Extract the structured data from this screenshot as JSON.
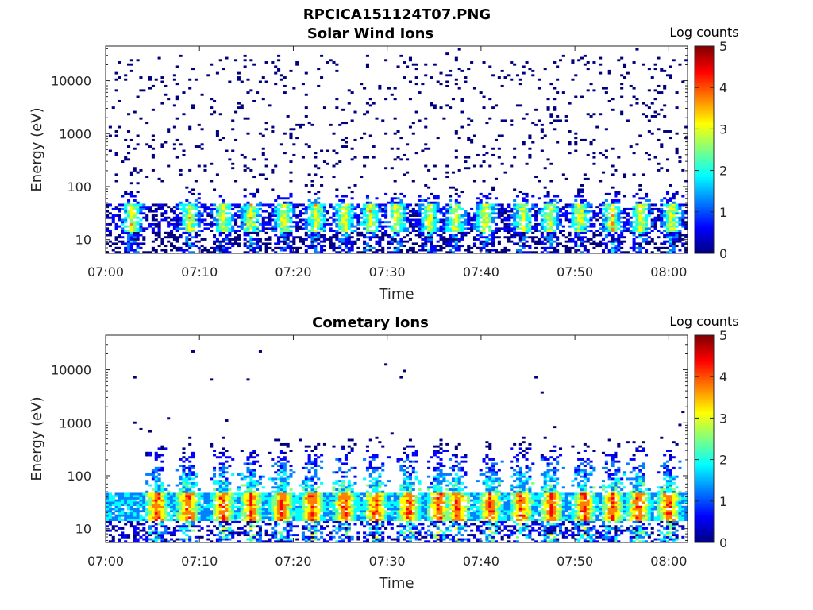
{
  "figure_title": "RPCICA151124T07.PNG",
  "colormap": [
    "#00007f",
    "#0000ff",
    "#007fff",
    "#00ffff",
    "#7fff7f",
    "#ffff00",
    "#ff7f00",
    "#ff0000",
    "#7f0000"
  ],
  "chart_data": [
    {
      "type": "heatmap",
      "title": "Solar Wind Ions",
      "xlabel": "Time",
      "ylabel": "Energy (eV)",
      "yscale": "log",
      "ylim": [
        5.5,
        45000
      ],
      "xlim": [
        "07:00",
        "08:02"
      ],
      "x_ticks": [
        "07:00",
        "07:10",
        "07:20",
        "07:30",
        "07:40",
        "07:50",
        "08:00"
      ],
      "y_ticks": [
        10,
        100,
        1000,
        10000
      ],
      "y_tick_labels": [
        "10",
        "100",
        "1000",
        "10000"
      ],
      "colorbar_label": "Log counts",
      "colorbar_range": [
        0,
        5
      ],
      "colorbar_ticks": [
        "0",
        "1",
        "2",
        "3",
        "4",
        "5"
      ],
      "grid": false,
      "burst_minutes": [
        2.8,
        9.0,
        12.5,
        15.5,
        19.0,
        22.4,
        25.5,
        28.2,
        31.0,
        34.5,
        37.3,
        40.5,
        44.5,
        47.3,
        50.5,
        54.0,
        57.0,
        60.3
      ],
      "pattern": "log counts 1-3.3 concentrated at 15-45 eV in periodic bursts; sparse low counts (0-0.5) scattered up to ~20000 eV"
    },
    {
      "type": "heatmap",
      "title": "Cometary Ions",
      "xlabel": "Time",
      "ylabel": "Energy (eV)",
      "yscale": "log",
      "ylim": [
        5.5,
        45000
      ],
      "xlim": [
        "07:00",
        "08:02"
      ],
      "x_ticks": [
        "07:00",
        "07:10",
        "07:20",
        "07:30",
        "07:40",
        "07:50",
        "08:00"
      ],
      "y_ticks": [
        10,
        100,
        1000,
        10000
      ],
      "y_tick_labels": [
        "10",
        "100",
        "1000",
        "10000"
      ],
      "colorbar_label": "Log counts",
      "colorbar_range": [
        0,
        5
      ],
      "colorbar_ticks": [
        "0",
        "1",
        "2",
        "3",
        "4",
        "5"
      ],
      "grid": false,
      "burst_minutes": [
        5.5,
        8.8,
        12.5,
        15.5,
        18.8,
        22.0,
        25.5,
        28.8,
        32.3,
        35.5,
        37.5,
        41.0,
        44.3,
        47.5,
        51.0,
        54.0,
        56.8,
        60.0
      ],
      "pattern": "log counts 2-4.2 concentrated at 15-45 eV with plumes extending to ~500 eV at each burst; isolated low counts up to ~20000 eV"
    }
  ]
}
